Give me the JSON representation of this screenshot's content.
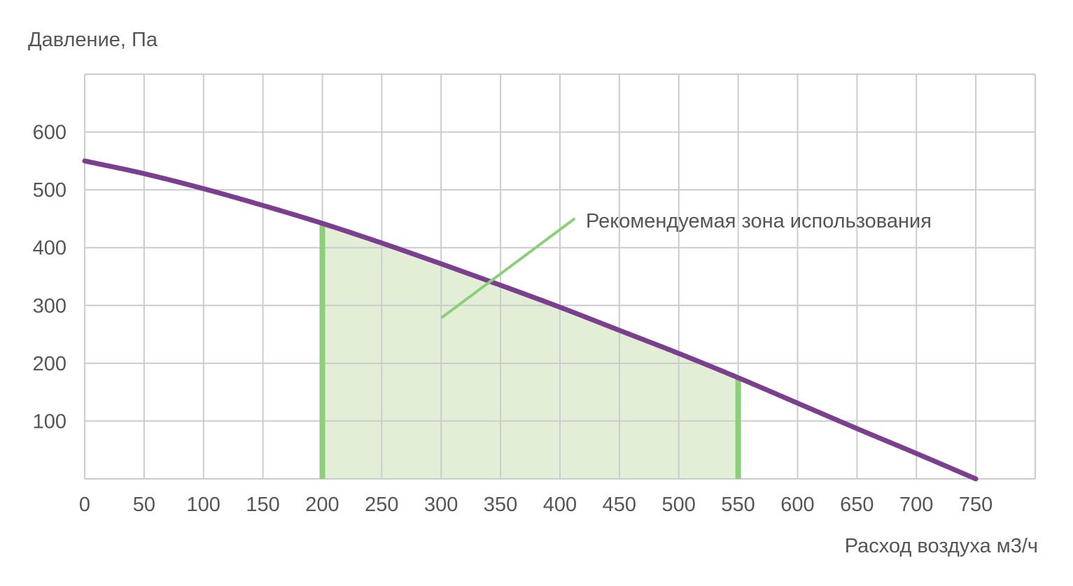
{
  "chart_data": {
    "type": "line",
    "ylabel": "Давление, Па",
    "xlabel": "Расход воздуха м3/ч",
    "x_ticks": [
      "0",
      "50",
      "100",
      "150",
      "200",
      "250",
      "300",
      "350",
      "400",
      "450",
      "500",
      "550",
      "600",
      "650",
      "700",
      "750"
    ],
    "y_ticks": [
      "100",
      "200",
      "300",
      "400",
      "500",
      "600"
    ],
    "xlim": [
      0,
      800
    ],
    "ylim": [
      0,
      700
    ],
    "grid": true,
    "series": [
      {
        "x": [
          0,
          50,
          100,
          150,
          200,
          250,
          300,
          350,
          400,
          450,
          500,
          550,
          600,
          650,
          700,
          750
        ],
        "y": [
          550,
          528,
          502,
          473,
          442,
          408,
          372,
          335,
          297,
          257,
          217,
          175,
          131,
          87,
          44,
          0
        ]
      }
    ],
    "highlight_zone": {
      "label": "Рекомендуемая зона использования",
      "x_from": 200,
      "x_to": 550
    },
    "colors": {
      "curve": "#7b3f8f",
      "zone_fill": "#e2efd6",
      "zone_edge": "#8ccf79",
      "grid": "#cccccc",
      "text": "#555555"
    }
  }
}
